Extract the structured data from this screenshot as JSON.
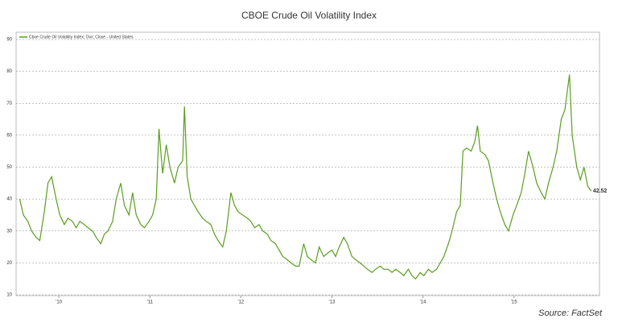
{
  "chart_data": {
    "type": "line",
    "title": "CBOE Crude Oil Volatility Index",
    "annotation": "Source: FactSet",
    "x": [
      2010.07,
      2010.11,
      2010.16,
      2010.2,
      2010.25,
      2010.29,
      2010.34,
      2010.38,
      2010.42,
      2010.47,
      2010.51,
      2010.56,
      2010.6,
      2010.65,
      2010.69,
      2010.73,
      2010.78,
      2010.82,
      2010.87,
      2010.91,
      2010.96,
      2011.0,
      2011.04,
      2011.09,
      2011.13,
      2011.18,
      2011.22,
      2011.27,
      2011.31,
      2011.35,
      2011.4,
      2011.44,
      2011.49,
      2011.53,
      2011.57,
      2011.6,
      2011.64,
      2011.68,
      2011.72,
      2011.77,
      2011.81,
      2011.86,
      2011.88,
      2011.91,
      2011.95,
      2011.99,
      2012.03,
      2012.08,
      2012.12,
      2012.17,
      2012.21,
      2012.25,
      2012.3,
      2012.34,
      2012.39,
      2012.43,
      2012.47,
      2012.52,
      2012.57,
      2012.61,
      2012.65,
      2012.7,
      2012.74,
      2012.79,
      2012.83,
      2012.88,
      2012.92,
      2012.96,
      2013.01,
      2013.05,
      2013.1,
      2013.14,
      2013.19,
      2013.23,
      2013.27,
      2013.32,
      2013.36,
      2013.41,
      2013.45,
      2013.5,
      2013.54,
      2013.58,
      2013.63,
      2013.67,
      2013.72,
      2013.76,
      2013.81,
      2013.85,
      2013.89,
      2013.94,
      2013.98,
      2014.03,
      2014.07,
      2014.12,
      2014.16,
      2014.2,
      2014.25,
      2014.29,
      2014.34,
      2014.38,
      2014.42,
      2014.47,
      2014.51,
      2014.56,
      2014.6,
      2014.65,
      2014.69,
      2014.73,
      2014.78,
      2014.82,
      2014.87,
      2014.91,
      2014.94,
      2014.98,
      2015.03,
      2015.07,
      2015.1,
      2015.13,
      2015.18,
      2015.22,
      2015.27,
      2015.31,
      2015.35,
      2015.4,
      2015.44,
      2015.49,
      2015.53,
      2015.58,
      2015.62,
      2015.66,
      2015.71,
      2015.75,
      2015.8,
      2015.84,
      2015.88,
      2015.93,
      2015.97,
      2016.02,
      2016.06,
      2016.11,
      2016.14,
      2016.19,
      2016.23,
      2016.27,
      2016.31,
      2016.35
    ],
    "series": [
      {
        "name": "Cboe Crude Oil Volatility Index; Ovx; Close - United States",
        "color": "#5a9e1e",
        "values": [
          40,
          35,
          33,
          30,
          28,
          27,
          36,
          45,
          47,
          40,
          35,
          32,
          34,
          33,
          31,
          33,
          32,
          31,
          30,
          28,
          26,
          29,
          30,
          33,
          40,
          45,
          38,
          35,
          42,
          35,
          32,
          31,
          33,
          35,
          40,
          62,
          48,
          57,
          50,
          45,
          50,
          52,
          69,
          47,
          40,
          38,
          36,
          34,
          33,
          32,
          29,
          27,
          25,
          30,
          42,
          38,
          36,
          35,
          34,
          33,
          31,
          32,
          30,
          29,
          27,
          26,
          24,
          22,
          21,
          20,
          19,
          19,
          26,
          22,
          21,
          20,
          25,
          22,
          23,
          24,
          22,
          25,
          28,
          26,
          22,
          21,
          20,
          19,
          18,
          17,
          18,
          19,
          18,
          18,
          17,
          18,
          17,
          16,
          18,
          16,
          15,
          17,
          16,
          18,
          17,
          18,
          20,
          22,
          26,
          30,
          36,
          38,
          55,
          56,
          55,
          58,
          63,
          55,
          54,
          52,
          45,
          40,
          36,
          32,
          30,
          35,
          38,
          42,
          48,
          55,
          50,
          45,
          42,
          40,
          45,
          50,
          55,
          65,
          68,
          79,
          60,
          50,
          46,
          50,
          44,
          42.52
        ]
      }
    ],
    "xlim": [
      2010.03,
      2016.44
    ],
    "xticks": [
      {
        "value": 2010.5,
        "label": "'10"
      },
      {
        "value": 2011.5,
        "label": "'11"
      },
      {
        "value": 2012.5,
        "label": "'12"
      },
      {
        "value": 2013.5,
        "label": "'13"
      },
      {
        "value": 2014.5,
        "label": "'14"
      },
      {
        "value": 2015.5,
        "label": "'15"
      }
    ],
    "ylim": [
      10,
      90
    ],
    "yticks": [
      10,
      20,
      30,
      40,
      50,
      60,
      70,
      80,
      90
    ],
    "grid": true
  }
}
